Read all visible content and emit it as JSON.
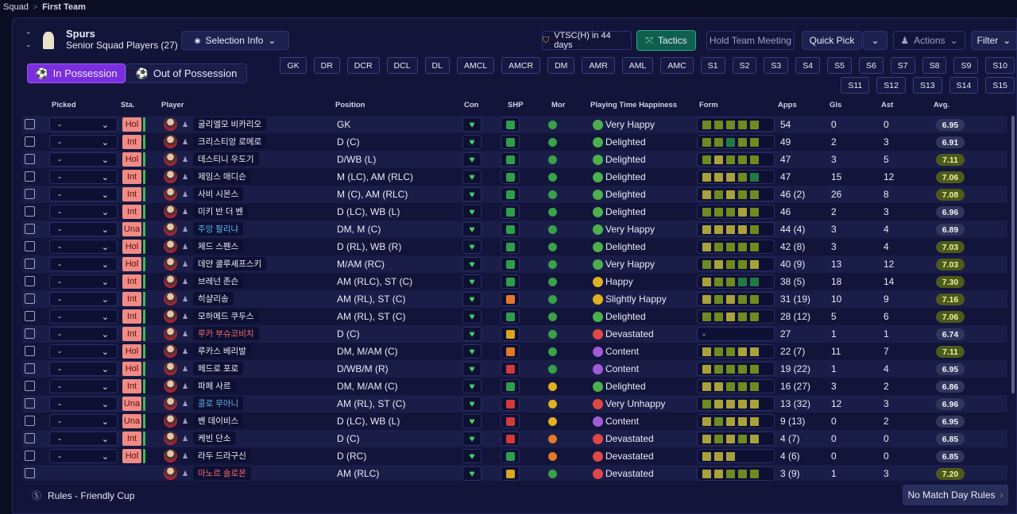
{
  "breadcrumb": [
    "Squad",
    "First Team"
  ],
  "header": {
    "team": "Spurs",
    "subtitle": "Senior Squad Players (27)",
    "selection_info": "Selection Info",
    "next_match": "VTSC(H) in 44 days",
    "tactics": "Tactics",
    "team_meeting": "Hold Team Meeting",
    "quick_pick": "Quick Pick",
    "actions": "Actions",
    "filter": "Filter"
  },
  "tabs": [
    "In Possession",
    "Out of Possession"
  ],
  "positions": [
    "GK",
    "DR",
    "DCR",
    "DCL",
    "DL",
    "AMCL",
    "AMCR",
    "DM",
    "AMR",
    "AML",
    "AMC",
    "S1",
    "S2",
    "S3",
    "S4",
    "S5",
    "S6",
    "S7",
    "S8",
    "S9",
    "S10",
    "S11",
    "S12",
    "S13",
    "S14",
    "S15"
  ],
  "table": {
    "columns": [
      "Picked",
      "Sta.",
      "Player",
      "Position",
      "Con",
      "SHP",
      "Mor",
      "Playing Time Happiness",
      "Form",
      "Apps",
      "Gls",
      "Ast",
      "Avg."
    ],
    "rows": [
      {
        "picked": "-",
        "status": "Hol",
        "name": "굴리엘모 비카리오",
        "position": "GK",
        "shp": "#2e9e4a",
        "mor": "#3aa04a",
        "mood": "#4caf50",
        "happiness": "Very Happy",
        "form": [
          "#6f8a1f",
          "#6f8a1f",
          "#6f8a1f",
          "#6f8a1f",
          "#6f8a1f"
        ],
        "apps": "54",
        "gls": 0,
        "ast": 0,
        "avg": "6.95"
      },
      {
        "picked": "-",
        "status": "Int",
        "name": "크리스티앙 로메로",
        "position": "D (C)",
        "shp": "#2e9e4a",
        "mor": "#3aa04a",
        "mood": "#4caf50",
        "happiness": "Delighted",
        "form": [
          "#6f8a1f",
          "#6f8a1f",
          "#1f7a45",
          "#6f8a1f",
          "#6f8a1f"
        ],
        "apps": "49",
        "gls": 2,
        "ast": 3,
        "avg": "6.91"
      },
      {
        "picked": "-",
        "status": "Hol",
        "name": "데스티니 우도기",
        "position": "D/WB (L)",
        "shp": "#2e9e4a",
        "mor": "#3aa04a",
        "mood": "#4caf50",
        "happiness": "Delighted",
        "form": [
          "#6f8a1f",
          "#a9a23a",
          "#6f8a1f",
          "#6f8a1f",
          "#6f8a1f"
        ],
        "apps": "47",
        "gls": 3,
        "ast": 5,
        "avg": "7.11"
      },
      {
        "picked": "-",
        "status": "Int",
        "name": "제임스 매디슨",
        "position": "M (LC), AM (RLC)",
        "shp": "#2e9e4a",
        "mor": "#3aa04a",
        "mood": "#4caf50",
        "happiness": "Delighted",
        "form": [
          "#a9a23a",
          "#a9a23a",
          "#a9a23a",
          "#6f8a1f",
          "#1f7a45"
        ],
        "apps": "47",
        "gls": 15,
        "ast": 12,
        "avg": "7.06"
      },
      {
        "picked": "-",
        "status": "Int",
        "name": "사비 시몬스",
        "position": "M (C), AM (RLC)",
        "shp": "#2e9e4a",
        "mor": "#3aa04a",
        "mood": "#4caf50",
        "happiness": "Delighted",
        "form": [
          "#a9a23a",
          "#6f8a1f",
          "#a9a23a",
          "#6f8a1f",
          "#6f8a1f"
        ],
        "apps": "46 (2)",
        "gls": 26,
        "ast": 8,
        "avg": "7.08"
      },
      {
        "picked": "-",
        "status": "Int",
        "name": "미키 반 더 벤",
        "position": "D (LC), WB (L)",
        "shp": "#2e9e4a",
        "mor": "#3aa04a",
        "mood": "#4caf50",
        "happiness": "Delighted",
        "form": [
          "#6f8a1f",
          "#6f8a1f",
          "#6f8a1f",
          "#a9a23a",
          "#6f8a1f"
        ],
        "apps": "46",
        "gls": 2,
        "ast": 3,
        "avg": "6.96"
      },
      {
        "picked": "-",
        "status": "Una",
        "name": "주앙 팔리냐",
        "name_color": "#5ab4f0",
        "position": "DM, M (C)",
        "shp": "#2e9e4a",
        "mor": "#3aa04a",
        "mood": "#4caf50",
        "happiness": "Very Happy",
        "form": [
          "#a9a23a",
          "#a9a23a",
          "#a9a23a",
          "#a9a23a",
          "#6f8a1f"
        ],
        "apps": "44 (4)",
        "gls": 3,
        "ast": 4,
        "avg": "6.89"
      },
      {
        "picked": "-",
        "status": "Hol",
        "name": "제드 스펜스",
        "position": "D (RL), WB (R)",
        "shp": "#2e9e4a",
        "mor": "#3aa04a",
        "mood": "#4caf50",
        "happiness": "Delighted",
        "form": [
          "#a9a23a",
          "#6f8a1f",
          "#6f8a1f",
          "#6f8a1f",
          "#6f8a1f"
        ],
        "apps": "42 (8)",
        "gls": 3,
        "ast": 4,
        "avg": "7.03"
      },
      {
        "picked": "-",
        "status": "Hol",
        "name": "데얀 쿨루셰프스키",
        "position": "M/AM (RC)",
        "shp": "#2e9e4a",
        "mor": "#3aa04a",
        "mood": "#4caf50",
        "happiness": "Very Happy",
        "form": [
          "#6f8a1f",
          "#a9a23a",
          "#6f8a1f",
          "#6f8a1f",
          "#a9a23a"
        ],
        "apps": "40 (9)",
        "gls": 13,
        "ast": 12,
        "avg": "7.03"
      },
      {
        "picked": "-",
        "status": "Int",
        "name": "브레넌 존슨",
        "position": "AM (RLC), ST (C)",
        "shp": "#2e9e4a",
        "mor": "#3aa04a",
        "mood": "#e0b020",
        "happiness": "Happy",
        "form": [
          "#a9a23a",
          "#6f8a1f",
          "#6f8a1f",
          "#1f7a45",
          "#1f7a45"
        ],
        "apps": "38 (5)",
        "gls": 18,
        "ast": 14,
        "avg": "7.30"
      },
      {
        "picked": "-",
        "status": "Int",
        "name": "히샬리송",
        "position": "AM (RL), ST (C)",
        "shp": "#e07a2a",
        "mor": "#3aa04a",
        "mood": "#e0b020",
        "happiness": "Slightly Happy",
        "form": [
          "#a9a23a",
          "#6f8a1f",
          "#a9a23a",
          "#6f8a1f",
          "#6f8a1f"
        ],
        "apps": "31 (19)",
        "gls": 10,
        "ast": 9,
        "avg": "7.16"
      },
      {
        "picked": "-",
        "status": "Int",
        "name": "모하메드 쿠두스",
        "position": "AM (RL), ST (C)",
        "shp": "#2e9e4a",
        "mor": "#3aa04a",
        "mood": "#4caf50",
        "happiness": "Delighted",
        "form": [
          "#6f8a1f",
          "#6f8a1f",
          "#a9a23a",
          "#6f8a1f",
          "#6f8a1f"
        ],
        "apps": "28 (12)",
        "gls": 5,
        "ast": 6,
        "avg": "7.06"
      },
      {
        "picked": "-",
        "status": "Int",
        "name": "루카 부슈코비치",
        "name_color": "#f06a6a",
        "position": "D (C)",
        "shp": "#d9a51e",
        "mor": "#3aa04a",
        "mood": "#e04848",
        "happiness": "Devastated",
        "form": "-",
        "apps": "27",
        "gls": 1,
        "ast": 1,
        "avg": "6.74"
      },
      {
        "picked": "-",
        "status": "Hol",
        "name": "루카스 베리발",
        "position": "DM, M/AM (C)",
        "shp": "#e07a2a",
        "mor": "#3aa04a",
        "mood": "#a05cd6",
        "happiness": "Content",
        "form": [
          "#a9a23a",
          "#6f8a1f",
          "#6f8a1f",
          "#a9a23a",
          "#a9a23a"
        ],
        "apps": "22 (7)",
        "gls": 11,
        "ast": 7,
        "avg": "7.11"
      },
      {
        "picked": "-",
        "status": "Hol",
        "name": "페드로 포로",
        "position": "D/WB/M (R)",
        "shp": "#d23a3a",
        "mor": "#3aa04a",
        "mood": "#a05cd6",
        "happiness": "Content",
        "form": [
          "#a9a23a",
          "#6f8a1f",
          "#6f8a1f",
          "#6f8a1f",
          "#6f8a1f"
        ],
        "apps": "19 (22)",
        "gls": 1,
        "ast": 4,
        "avg": "6.95"
      },
      {
        "picked": "-",
        "status": "Int",
        "name": "파페 사르",
        "position": "DM, M/AM (C)",
        "shp": "#2e9e4a",
        "mor": "#e0b020",
        "mood": "#4caf50",
        "happiness": "Delighted",
        "form": [
          "#a9a23a",
          "#a9a23a",
          "#6f8a1f",
          "#6f8a1f",
          "#6f8a1f"
        ],
        "apps": "16 (27)",
        "gls": 3,
        "ast": 2,
        "avg": "6.86"
      },
      {
        "picked": "-",
        "status": "Una",
        "name": "콜로 무아니",
        "name_color": "#5ab4f0",
        "position": "AM (RL), ST (C)",
        "shp": "#d23a3a",
        "mor": "#e0b020",
        "mood": "#e04848",
        "happiness": "Very Unhappy",
        "form": [
          "#6f8a1f",
          "#a9a23a",
          "#a9a23a",
          "#a9a23a",
          "#a9a23a"
        ],
        "apps": "13 (32)",
        "gls": 12,
        "ast": 3,
        "avg": "6.96"
      },
      {
        "picked": "-",
        "status": "Una",
        "name": "벤 데이비스",
        "position": "D (LC), WB (L)",
        "shp": "#d23a3a",
        "mor": "#e0b020",
        "mood": "#a05cd6",
        "happiness": "Content",
        "form": [
          "#a9a23a",
          "#6f8a1f",
          "#a9a23a",
          "#a9a23a",
          "#a9a23a"
        ],
        "apps": "9 (13)",
        "gls": 0,
        "ast": 2,
        "avg": "6.95"
      },
      {
        "picked": "-",
        "status": "Int",
        "name": "케빈 단소",
        "position": "D (C)",
        "shp": "#d23a3a",
        "mor": "#e07a2a",
        "mood": "#e04848",
        "happiness": "Devastated",
        "form": [
          "#a9a23a",
          "#6f8a1f",
          "#a9a23a",
          "#6f8a1f",
          "#a9a23a"
        ],
        "apps": "4 (7)",
        "gls": 0,
        "ast": 0,
        "avg": "6.85"
      },
      {
        "picked": "-",
        "status": "Hol",
        "name": "라두 드라구신",
        "position": "D (RC)",
        "shp": "#2e9e4a",
        "mor": "#e07a2a",
        "mood": "#e04848",
        "happiness": "Devastated",
        "form": [
          "#a9a23a",
          "#a9a23a",
          "#a9a23a"
        ],
        "apps": "4 (6)",
        "gls": 0,
        "ast": 0,
        "avg": "6.85"
      },
      {
        "name": "마노르 솔로몬",
        "name_color": "#f06a6a",
        "position": "AM (RLC)",
        "shp": "#d9a51e",
        "mor": "#3aa04a",
        "mood": "#e04848",
        "happiness": "Devastated",
        "form": [
          "#a9a23a",
          "#a9a23a",
          "#6f8a1f",
          "#6f8a1f",
          "#6f8a1f"
        ],
        "apps": "3 (9)",
        "gls": 1,
        "ast": 3,
        "avg": "7.20"
      }
    ]
  },
  "footer": {
    "rules": "Rules - Friendly Cup",
    "match_day": "No Match Day Rules"
  }
}
